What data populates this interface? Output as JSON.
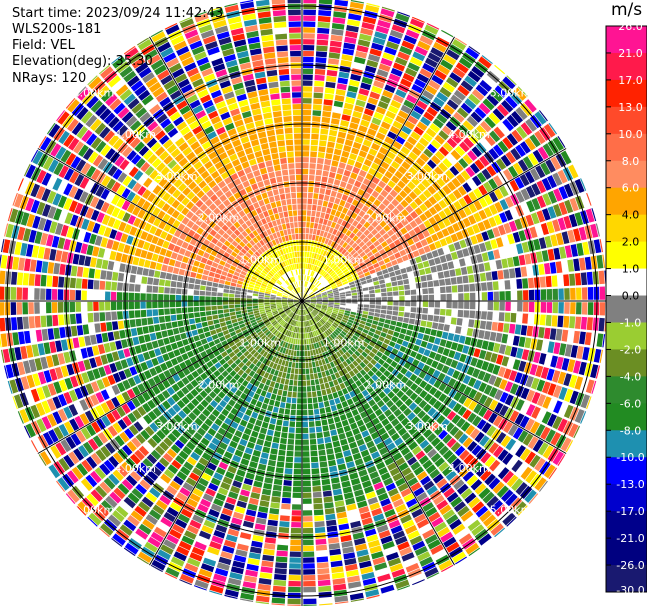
{
  "header": {
    "start_time": "Start time: 2023/09/24 11:42:43",
    "instrument": "WLS200s-181",
    "field": "Field: VEL",
    "elevation": "Elevation(deg): 35.30",
    "nrays": "NRays: 120"
  },
  "chart_data": {
    "type": "heatmap",
    "projection": "polar (PPI scan)",
    "field": "VEL",
    "units": "m/s",
    "n_rays": 120,
    "elevation_deg": 35.3,
    "range_rings_km": [
      1.0,
      2.0,
      3.0,
      4.0,
      5.0
    ],
    "ring_labels": [
      "1.00km",
      "2.00km",
      "3.00km",
      "4.00km",
      "5.00km"
    ],
    "azimuth_spokes_deg": [
      0,
      30,
      60,
      90,
      120,
      150,
      180,
      210,
      240,
      270,
      300,
      330
    ],
    "colorbar": {
      "title": "m/s",
      "tick_labels": [
        "26.0",
        "21.0",
        "17.0",
        "13.0",
        "10.0",
        "8.0",
        "6.0",
        "4.0",
        "2.0",
        "1.0",
        "0.0",
        "-1.0",
        "-2.0",
        "-4.0",
        "-6.0",
        "-8.0",
        "-10.0",
        "-13.0",
        "-17.0",
        "-21.0",
        "-26.0",
        "-30.0"
      ],
      "colors": [
        "#ff1493",
        "#ff1a4b",
        "#ff2200",
        "#ff4a2a",
        "#ff6e48",
        "#ff8c60",
        "#ffa500",
        "#ffd700",
        "#ffff00",
        "#ffffff",
        "#808080",
        "#9acd32",
        "#6b8e23",
        "#2e8b2e",
        "#228b22",
        "#1e90b0",
        "#0000ff",
        "#0000cd",
        "#00008b",
        "#000080",
        "#191970"
      ]
    },
    "velocity_pattern": {
      "north_sector": "positive 4-10 m/s (yellow/orange), strongest near 2 km range",
      "near_zero_band": "about 0 to -1 m/s along east-west line",
      "south_sector": "negative -1 to -6 m/s (greens), increasing with range",
      "beyond_approx_3km": "noisy, all values"
    }
  }
}
